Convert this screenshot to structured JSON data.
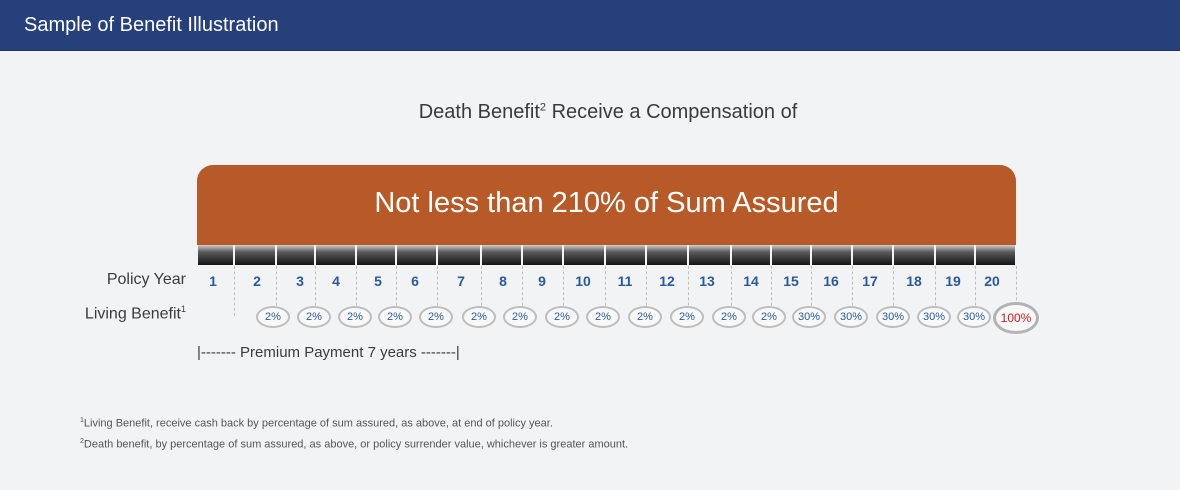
{
  "header": {
    "title": "Sample of Benefit Illustration"
  },
  "heading": {
    "pre": "Death Benefit",
    "sup": "2",
    "post": " Receive a Compensation of"
  },
  "banner": {
    "text": "Not less than 210% of Sum Assured"
  },
  "labels": {
    "policy_year": "Policy Year",
    "living_benefit": "Living Benefit",
    "living_sup": "1"
  },
  "years": [
    "1",
    "2",
    "3",
    "4",
    "5",
    "6",
    "7",
    "8",
    "9",
    "10",
    "11",
    "12",
    "13",
    "14",
    "15",
    "16",
    "17",
    "18",
    "19",
    "20"
  ],
  "benefits": [
    "2%",
    "2%",
    "2%",
    "2%",
    "2%",
    "2%",
    "2%",
    "2%",
    "2%",
    "2%",
    "2%",
    "2%",
    "2%",
    "30%",
    "30%",
    "30%",
    "30%",
    "30%",
    "100%"
  ],
  "premium": {
    "text": "|------- Premium Payment 7 years -------|"
  },
  "footnotes": [
    {
      "sup": "1",
      "text": "Living Benefit, receive cash back by percentage of sum assured, as above, at end of policy year."
    },
    {
      "sup": "2",
      "text": "Death benefit, by percentage of sum assured, as above, or policy surrender value, whichever is greater amount."
    }
  ]
}
